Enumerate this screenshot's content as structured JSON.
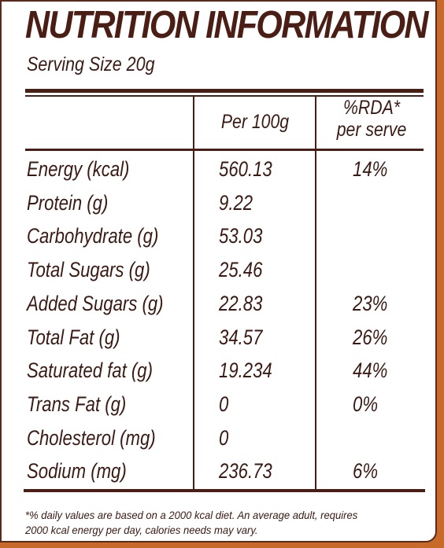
{
  "title": "NUTRITION INFORMATION",
  "serving_size": "Serving Size 20g",
  "columns": {
    "per100": "Per 100g",
    "rda_line1": "%RDA*",
    "rda_line2": "per serve"
  },
  "rows": [
    {
      "name": "Energy (kcal)",
      "value": "560.13",
      "rda": "14%"
    },
    {
      "name": "Protein (g)",
      "value": "9.22",
      "rda": ""
    },
    {
      "name": "Carbohydrate (g)",
      "value": "53.03",
      "rda": ""
    },
    {
      "name": "Total Sugars (g)",
      "value": "25.46",
      "rda": ""
    },
    {
      "name": "Added Sugars (g)",
      "value": "22.83",
      "rda": "23%"
    },
    {
      "name": "Total Fat (g)",
      "value": "34.57",
      "rda": "26%"
    },
    {
      "name": "Saturated fat (g)",
      "value": "19.234",
      "rda": "44%"
    },
    {
      "name": "Trans Fat (g)",
      "value": "0",
      "rda": "0%"
    },
    {
      "name": "Cholesterol (mg)",
      "value": "0",
      "rda": ""
    },
    {
      "name": "Sodium (mg)",
      "value": "236.73",
      "rda": "6%"
    }
  ],
  "footnote_line1": "*% daily values are based on a 2000 kcal diet. An average adult, requires",
  "footnote_line2": "2000 kcal energy per day, calories needs may vary.",
  "colors": {
    "text": "#4a1e14",
    "background_edge": "#c86a2a"
  }
}
